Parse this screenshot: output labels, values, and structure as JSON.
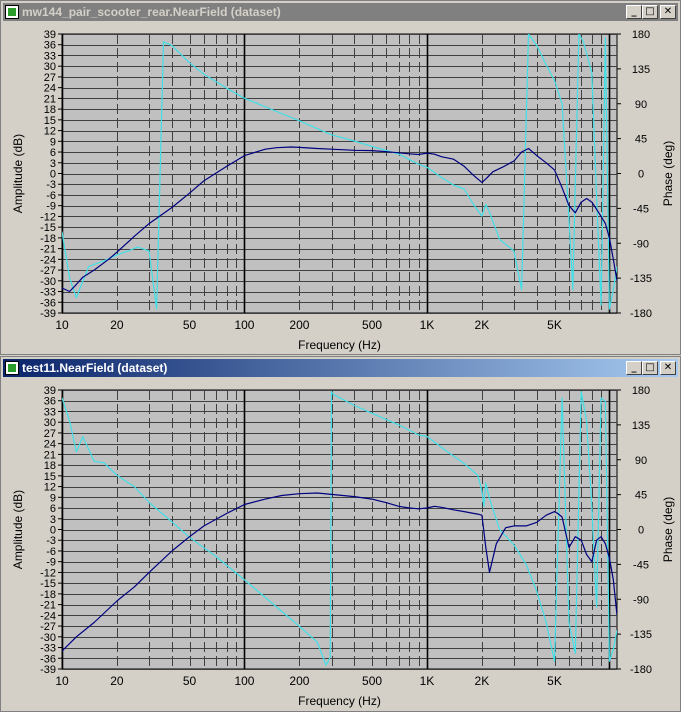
{
  "windows": [
    {
      "title": "mw144_pair_scooter_rear.NearField (dataset)",
      "active": false,
      "controls": {
        "minimize": "_",
        "maximize": "□",
        "close": "✕"
      },
      "icon": "dataset-icon"
    },
    {
      "title": "test11.NearField (dataset)",
      "active": true,
      "controls": {
        "minimize": "_",
        "maximize": "□",
        "close": "✕"
      },
      "icon": "dataset-icon"
    }
  ],
  "colors": {
    "plot_bg": "#c0c0c0",
    "grid_dark": "#404040",
    "grid_light": "#000000",
    "amplitude": "#000080",
    "phase": "#40e0e8",
    "window_bg": "#d4d0c8"
  },
  "chart_data": [
    {
      "type": "line",
      "title": "mw144_pair_scooter_rear.NearField (dataset)",
      "xlabel": "Frequency (Hz)",
      "ylabel": "Amplitude (dB)",
      "y2label": "Phase (deg)",
      "xscale": "log",
      "xlim": [
        10,
        11000
      ],
      "ylim": [
        -39,
        39
      ],
      "y2lim": [
        -180,
        180
      ],
      "xticks": [
        10,
        20,
        50,
        100,
        200,
        500,
        1000,
        2000,
        5000
      ],
      "xticklabels": [
        "10",
        "20",
        "50",
        "100",
        "200",
        "500",
        "1K",
        "2K",
        "5K"
      ],
      "yticks": [
        39,
        36,
        33,
        30,
        27,
        24,
        21,
        18,
        15,
        12,
        9,
        6,
        3,
        0,
        -3,
        -6,
        -9,
        -12,
        -15,
        -18,
        -21,
        -24,
        -27,
        -30,
        -33,
        -36,
        -39
      ],
      "y2ticks": [
        180,
        135,
        90,
        45,
        0,
        -45,
        -90,
        -135,
        -180
      ],
      "grid": true,
      "series": [
        {
          "axis": "y",
          "color": "#000080",
          "x": [
            10,
            11,
            12,
            13,
            15,
            18,
            20,
            25,
            30,
            40,
            50,
            60,
            80,
            100,
            130,
            150,
            180,
            200,
            250,
            300,
            400,
            500,
            600,
            700,
            800,
            900,
            1000,
            1100,
            1200,
            1400,
            1600,
            1800,
            2000,
            2100,
            2300,
            2600,
            3000,
            3300,
            3600,
            4000,
            4500,
            5000,
            5500,
            6000,
            6500,
            7000,
            7500,
            8000,
            8500,
            9000,
            9500,
            10000,
            10500,
            11000
          ],
          "y": [
            -32,
            -33,
            -31,
            -29,
            -27,
            -24,
            -22,
            -17.5,
            -14,
            -9.5,
            -5.5,
            -2,
            2,
            5,
            6.8,
            7.2,
            7.4,
            7.3,
            7,
            6.8,
            6.5,
            6.4,
            6.1,
            5.8,
            5.5,
            5.3,
            5.7,
            5.4,
            4.7,
            4,
            2,
            -0.5,
            -2.5,
            -1.5,
            0.5,
            1.8,
            3.5,
            6,
            7,
            5,
            3,
            1,
            -4,
            -9,
            -11,
            -8,
            -7,
            -8,
            -10,
            -12,
            -14,
            -18,
            -24,
            -30
          ]
        },
        {
          "axis": "y2",
          "color": "#40e0e8",
          "x": [
            10,
            11,
            12,
            14,
            16,
            18,
            20,
            23,
            26,
            30,
            33,
            36,
            40,
            50,
            60,
            80,
            100,
            150,
            200,
            300,
            400,
            500,
            700,
            900,
            1000,
            1200,
            1400,
            1600,
            1800,
            2000,
            2100,
            2200,
            2500,
            3000,
            3300,
            3600,
            4000,
            4500,
            5000,
            5500,
            6000,
            6300,
            6800,
            7200,
            8000,
            8500,
            9000,
            9500,
            10000,
            10500,
            11000
          ],
          "y": [
            -75,
            -135,
            -160,
            -120,
            -115,
            -110,
            -105,
            -100,
            -95,
            -100,
            -175,
            170,
            165,
            143,
            128,
            110,
            97,
            80,
            68,
            50,
            42,
            35,
            25,
            12,
            8,
            -5,
            -15,
            -20,
            -40,
            -55,
            -40,
            -50,
            -85,
            -100,
            -150,
            180,
            165,
            140,
            120,
            90,
            -60,
            -150,
            180,
            170,
            130,
            -30,
            -170,
            175,
            -175,
            -150,
            -120
          ]
        }
      ]
    },
    {
      "type": "line",
      "title": "test11.NearField (dataset)",
      "xlabel": "Frequency (Hz)",
      "ylabel": "Amplitude (dB)",
      "y2label": "Phase (deg)",
      "xscale": "log",
      "xlim": [
        10,
        11000
      ],
      "ylim": [
        -39,
        39
      ],
      "y2lim": [
        -180,
        180
      ],
      "xticks": [
        10,
        20,
        50,
        100,
        200,
        500,
        1000,
        2000,
        5000
      ],
      "xticklabels": [
        "10",
        "20",
        "50",
        "100",
        "200",
        "500",
        "1K",
        "2K",
        "5K"
      ],
      "yticks": [
        39,
        36,
        33,
        30,
        27,
        24,
        21,
        18,
        15,
        12,
        9,
        6,
        3,
        0,
        -3,
        -6,
        -9,
        -12,
        -15,
        -18,
        -21,
        -24,
        -27,
        -30,
        -33,
        -36,
        -39
      ],
      "y2ticks": [
        180,
        135,
        90,
        45,
        0,
        -45,
        -90,
        -135,
        -180
      ],
      "grid": true,
      "series": [
        {
          "axis": "y",
          "color": "#000080",
          "x": [
            10,
            12,
            15,
            20,
            25,
            30,
            40,
            50,
            60,
            80,
            100,
            130,
            160,
            200,
            250,
            300,
            400,
            500,
            600,
            700,
            800,
            900,
            1000,
            1100,
            1200,
            1400,
            1600,
            1800,
            1900,
            2000,
            2100,
            2200,
            2400,
            2700,
            3000,
            3500,
            4000,
            4500,
            5000,
            5200,
            5500,
            6000,
            6500,
            7000,
            7500,
            8000,
            8500,
            9000,
            9500,
            10000,
            10500,
            11000
          ],
          "y": [
            -34,
            -30,
            -26,
            -20,
            -16,
            -12,
            -6,
            -2,
            1,
            4.5,
            7,
            8.5,
            9.5,
            10,
            10.2,
            9.8,
            9.2,
            8.5,
            7.5,
            6.5,
            6,
            5.8,
            6,
            6.5,
            6.2,
            5.5,
            5,
            4.5,
            4.3,
            4,
            -5,
            -12,
            -4,
            0.5,
            1,
            1,
            2,
            4,
            5,
            4.5,
            3.5,
            -5,
            -2,
            -3,
            -7,
            -9,
            -3,
            -2,
            -4,
            -8,
            -14,
            -24
          ]
        },
        {
          "axis": "y2",
          "color": "#40e0e8",
          "x": [
            10,
            11,
            12,
            13,
            15,
            17,
            20,
            25,
            30,
            40,
            50,
            70,
            100,
            150,
            200,
            250,
            280,
            295,
            300,
            305,
            320,
            400,
            500,
            700,
            900,
            1000,
            1300,
            1600,
            1900,
            2000,
            2050,
            2100,
            2200,
            2500,
            3000,
            3500,
            4000,
            4500,
            5000,
            5500,
            6000,
            6500,
            7000,
            7500,
            8000,
            8500,
            9000,
            9500,
            10000,
            10500,
            11000
          ],
          "y": [
            170,
            140,
            100,
            120,
            88,
            86,
            70,
            55,
            35,
            10,
            -10,
            -35,
            -65,
            -100,
            -125,
            -145,
            -175,
            -165,
            178,
            175,
            172,
            160,
            150,
            135,
            122,
            120,
            100,
            85,
            70,
            50,
            30,
            60,
            40,
            0,
            -20,
            -45,
            -80,
            -120,
            -170,
            170,
            -120,
            -160,
            178,
            140,
            30,
            -100,
            170,
            165,
            -170,
            -155,
            -130
          ]
        }
      ]
    }
  ]
}
